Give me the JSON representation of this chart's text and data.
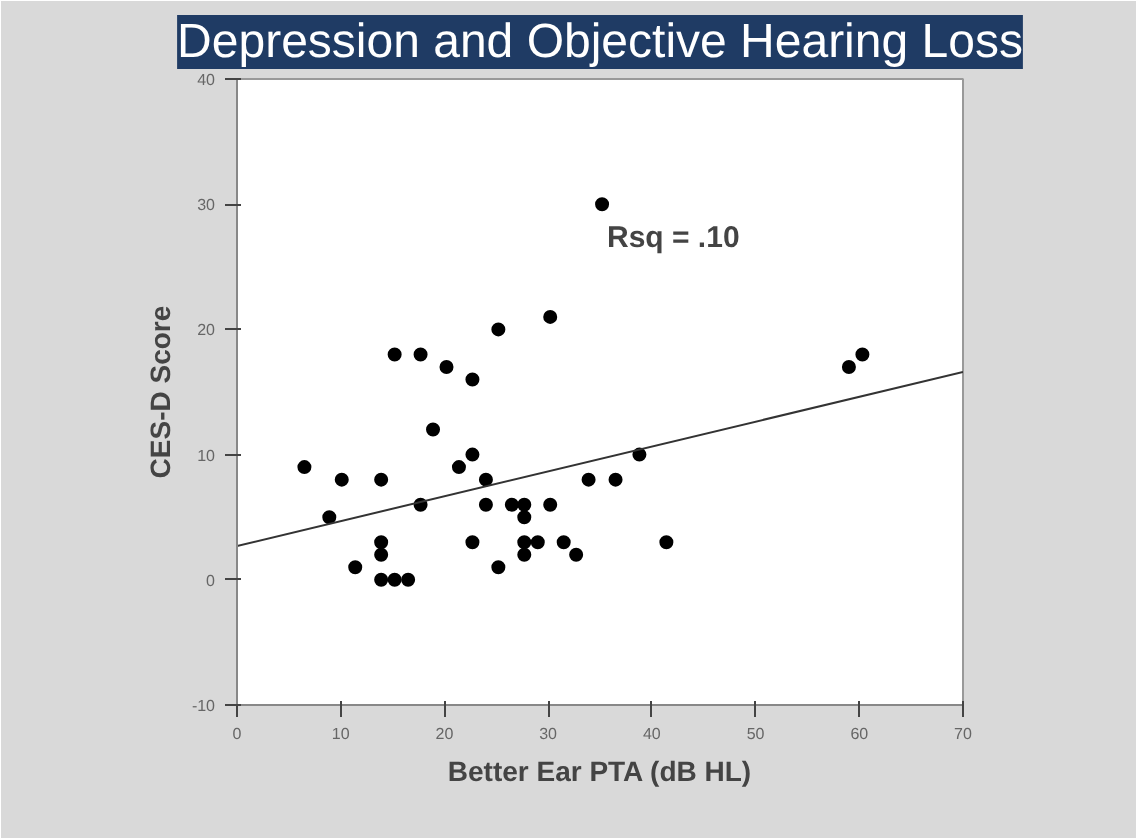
{
  "chart_data": {
    "type": "scatter",
    "title": "Depression and Objective Hearing Loss",
    "xlabel": "Better Ear PTA (dB HL)",
    "ylabel": "CES-D Score",
    "annotations": [
      "Rsq = .10"
    ],
    "series": [
      {
        "marker": "circle",
        "color": "#000000",
        "x": [
          6.5,
          8.9,
          10.1,
          11.4,
          13.9,
          13.9,
          13.9,
          13.9,
          15.2,
          15.2,
          16.5,
          17.7,
          17.7,
          18.9,
          20.2,
          21.4,
          22.7,
          22.7,
          22.7,
          24.0,
          24.0,
          25.2,
          25.2,
          26.5,
          27.7,
          27.7,
          27.7,
          27.7,
          29.0,
          30.2,
          30.2,
          31.5,
          32.7,
          33.9,
          35.2,
          36.5,
          38.8,
          41.4,
          59.0,
          60.3
        ],
        "values": [
          9,
          5,
          8,
          1,
          8,
          3,
          2,
          0,
          18,
          0,
          0,
          18,
          6,
          12,
          17,
          9,
          16,
          10,
          3,
          8,
          6,
          20,
          1,
          6,
          6,
          5,
          3,
          2,
          3,
          6,
          21,
          3,
          2,
          8,
          30,
          8,
          10,
          3,
          17,
          18
        ]
      },
      {
        "type": "line",
        "color": "#333333",
        "x": [
          0,
          70
        ],
        "values": [
          2.7,
          16.6
        ]
      }
    ],
    "grid": false,
    "xlim": [
      0,
      70
    ],
    "xticks": [
      0,
      10,
      20,
      30,
      40,
      50,
      60,
      70
    ],
    "ylim": [
      -10,
      40
    ],
    "yticks": [
      -10,
      0,
      10,
      20,
      30,
      40
    ]
  }
}
